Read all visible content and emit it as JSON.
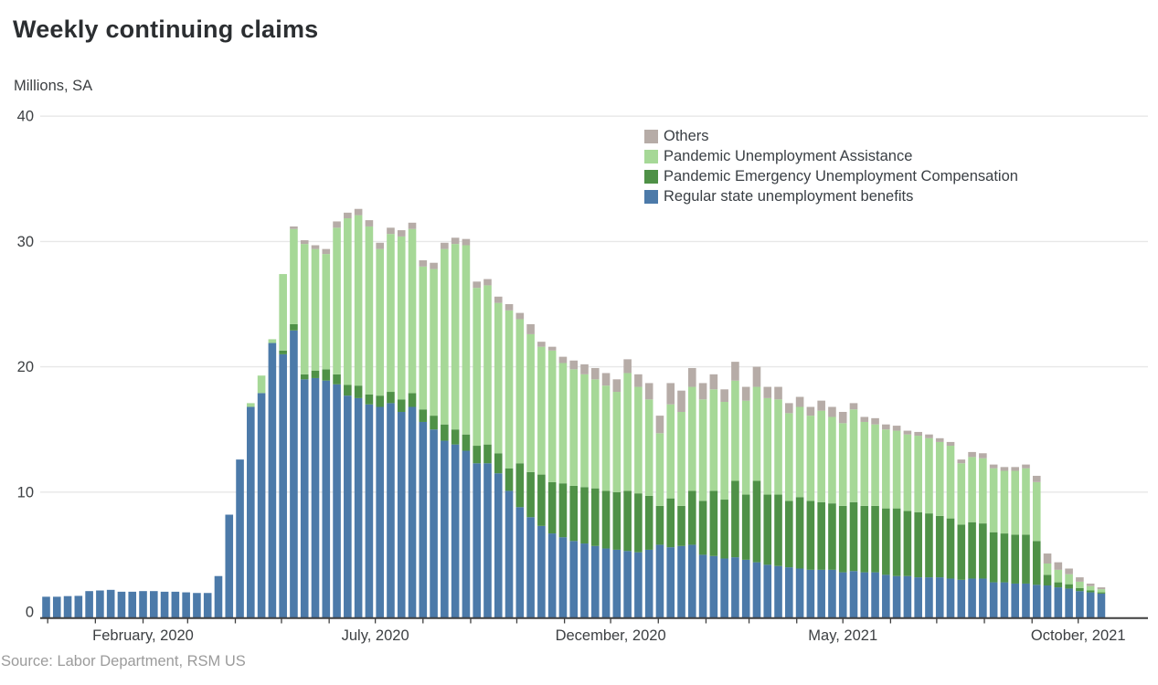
{
  "header": {
    "title": "Weekly continuing claims",
    "unit_label": "Millions, SA"
  },
  "footer": {
    "source": "Source: Labor Department, RSM US"
  },
  "chart_data": {
    "type": "bar",
    "stacked": true,
    "title": "Weekly continuing claims",
    "ylabel": "Millions, SA",
    "xlabel": "",
    "ylim": [
      0,
      40
    ],
    "y_ticks": [
      0,
      10,
      20,
      30,
      40
    ],
    "grid": "horizontal",
    "legend_position": "top-right",
    "x_axis": {
      "unit": "week",
      "start_week": "2019-11-30",
      "num_weeks": 99,
      "minor_ticks": "monthly",
      "tick_labels": [
        {
          "date": "2020-02-01",
          "label": "February, 2020"
        },
        {
          "date": "2020-07-01",
          "label": "July, 2020"
        },
        {
          "date": "2020-12-01",
          "label": "December, 2020"
        },
        {
          "date": "2021-05-01",
          "label": "May, 2021"
        },
        {
          "date": "2021-10-01",
          "label": "October, 2021"
        }
      ]
    },
    "series": [
      {
        "id": "regular",
        "name": "Regular state unemployment benefits",
        "color": "#4C7AA9",
        "values": [
          1.65,
          1.65,
          1.7,
          1.72,
          2.1,
          2.15,
          2.2,
          2.05,
          2.05,
          2.1,
          2.1,
          2.05,
          2.05,
          2.0,
          1.95,
          1.95,
          3.3,
          8.2,
          12.6,
          16.8,
          17.9,
          21.9,
          21.0,
          22.9,
          19.0,
          19.1,
          18.9,
          18.6,
          17.7,
          17.5,
          17.0,
          16.8,
          17.1,
          16.4,
          16.8,
          15.6,
          15.0,
          14.1,
          13.8,
          13.3,
          12.3,
          12.3,
          11.5,
          10.1,
          8.8,
          8.0,
          7.3,
          6.7,
          6.4,
          6.1,
          5.9,
          5.7,
          5.5,
          5.4,
          5.3,
          5.2,
          5.4,
          5.8,
          5.6,
          5.7,
          5.8,
          5.0,
          4.9,
          4.7,
          4.8,
          4.6,
          4.4,
          4.2,
          4.1,
          4.0,
          3.9,
          3.8,
          3.8,
          3.8,
          3.6,
          3.7,
          3.6,
          3.6,
          3.4,
          3.3,
          3.3,
          3.2,
          3.2,
          3.2,
          3.1,
          3.0,
          3.1,
          3.1,
          2.8,
          2.8,
          2.7,
          2.7,
          2.6,
          2.55,
          2.4,
          2.3,
          2.1,
          2.0,
          1.9
        ]
      },
      {
        "id": "peuc",
        "name": "Pandemic Emergency Unemployment Compensation",
        "color": "#4F9147",
        "values": [
          0,
          0,
          0,
          0,
          0,
          0,
          0,
          0,
          0,
          0,
          0,
          0,
          0,
          0,
          0,
          0,
          0,
          0,
          0,
          0,
          0,
          0,
          0.3,
          0.5,
          0.4,
          0.6,
          0.9,
          0.8,
          0.85,
          1.0,
          0.8,
          0.9,
          0.9,
          1.0,
          1.1,
          1.0,
          1.1,
          1.3,
          1.2,
          1.3,
          1.4,
          1.5,
          1.6,
          1.8,
          3.5,
          3.6,
          4.1,
          4.1,
          4.3,
          4.4,
          4.5,
          4.6,
          4.6,
          4.6,
          4.8,
          4.7,
          4.3,
          3.1,
          3.9,
          3.2,
          4.3,
          4.3,
          5.2,
          4.7,
          6.1,
          5.2,
          6.5,
          5.6,
          5.7,
          5.3,
          5.7,
          5.5,
          5.4,
          5.3,
          5.3,
          5.5,
          5.3,
          5.3,
          5.3,
          5.4,
          5.2,
          5.2,
          5.1,
          4.9,
          4.8,
          4.4,
          4.5,
          4.4,
          4.0,
          3.9,
          3.9,
          3.9,
          3.5,
          0.85,
          0.4,
          0.35,
          0.25,
          0.15,
          0.1
        ]
      },
      {
        "id": "pua",
        "name": "Pandemic Unemployment Assistance",
        "color": "#A6D897",
        "values": [
          0,
          0,
          0,
          0,
          0,
          0,
          0,
          0,
          0,
          0,
          0,
          0,
          0,
          0,
          0,
          0,
          0,
          0,
          0,
          0.3,
          1.4,
          0.3,
          6.1,
          7.6,
          10.4,
          9.7,
          9.2,
          11.7,
          13.3,
          13.6,
          13.4,
          11.7,
          12.6,
          13.0,
          13.1,
          11.4,
          11.7,
          14.0,
          14.8,
          15.1,
          12.6,
          12.7,
          12.0,
          12.6,
          11.5,
          11.0,
          10.2,
          10.5,
          9.6,
          9.3,
          9.0,
          8.7,
          8.4,
          8.0,
          9.4,
          8.5,
          7.7,
          5.8,
          7.5,
          7.5,
          8.3,
          8.1,
          8.1,
          7.8,
          8.0,
          7.5,
          7.5,
          7.7,
          7.6,
          7.0,
          7.2,
          6.8,
          7.3,
          6.9,
          6.6,
          7.4,
          6.7,
          6.5,
          6.3,
          6.2,
          6.1,
          6.1,
          6.0,
          5.9,
          5.8,
          4.9,
          5.2,
          5.2,
          5.1,
          5.0,
          5.1,
          5.3,
          4.7,
          0.9,
          1.0,
          0.8,
          0.5,
          0.35,
          0.25
        ]
      },
      {
        "id": "others",
        "name": "Others",
        "color": "#B6ACA7",
        "values": [
          0,
          0,
          0,
          0,
          0,
          0,
          0,
          0,
          0,
          0,
          0,
          0,
          0,
          0,
          0,
          0,
          0,
          0,
          0,
          0,
          0,
          0,
          0,
          0.2,
          0.3,
          0.3,
          0.4,
          0.5,
          0.45,
          0.5,
          0.5,
          0.5,
          0.5,
          0.5,
          0.5,
          0.5,
          0.5,
          0.5,
          0.5,
          0.5,
          0.5,
          0.5,
          0.5,
          0.5,
          0.5,
          0.8,
          0.4,
          0.3,
          0.5,
          0.7,
          0.8,
          0.9,
          1.0,
          1.0,
          1.1,
          1.0,
          1.3,
          1.4,
          1.7,
          1.7,
          1.5,
          1.3,
          1.2,
          1.0,
          1.5,
          1.1,
          1.6,
          0.9,
          1.0,
          0.8,
          0.8,
          0.7,
          0.8,
          0.8,
          0.9,
          0.5,
          0.4,
          0.5,
          0.4,
          0.4,
          0.3,
          0.3,
          0.3,
          0.3,
          0.3,
          0.3,
          0.4,
          0.4,
          0.3,
          0.3,
          0.3,
          0.3,
          0.5,
          0.8,
          0.6,
          0.45,
          0.35,
          0.2,
          0.15
        ]
      }
    ],
    "legend": [
      {
        "label": "Others",
        "color": "#B6ACA7"
      },
      {
        "label": "Pandemic Unemployment Assistance",
        "color": "#A6D897"
      },
      {
        "label": "Pandemic Emergency Unemployment Compensation",
        "color": "#4F9147"
      },
      {
        "label": "Regular state unemployment benefits",
        "color": "#4C7AA9"
      }
    ],
    "colors": {
      "gridline": "#e7e7e7",
      "axis_line": "#3f3f3f",
      "axis_text": "#3d4043"
    }
  }
}
